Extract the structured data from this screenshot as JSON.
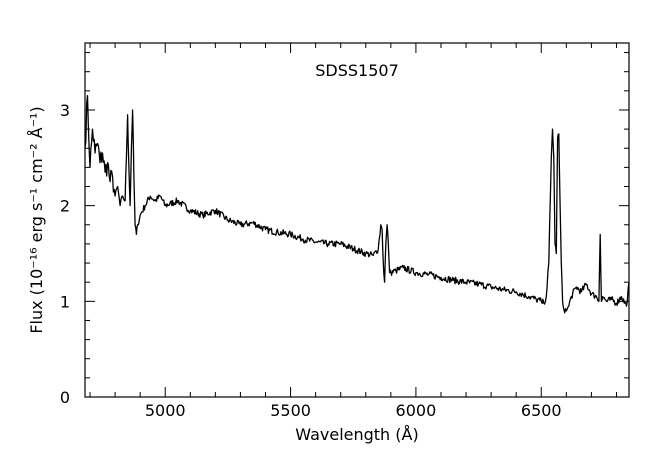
{
  "chart_data": {
    "type": "line",
    "title": "SDSS1507",
    "xlabel": "Wavelength (Å)",
    "ylabel": "Flux (10⁻¹⁶ erg s⁻¹ cm⁻² Å⁻¹)",
    "xlim": [
      4680,
      6850
    ],
    "ylim": [
      0,
      3.7
    ],
    "x_ticks": [
      "5000",
      "5500",
      "6000",
      "6500"
    ],
    "y_ticks": [
      "0",
      "1",
      "2",
      "3"
    ],
    "grid": false,
    "series": [
      {
        "x": [
          4680,
          4690,
          4700,
          4710,
          4720,
          4730,
          4740,
          4750,
          4760,
          4770,
          4780,
          4790,
          4800,
          4810,
          4820,
          4830,
          4840,
          4845,
          4850,
          4855,
          4860,
          4865,
          4870,
          4875,
          4880,
          4885,
          4890,
          4900,
          4920,
          4940,
          4960,
          4980,
          5000,
          5050,
          5100,
          5150,
          5200,
          5250,
          5300,
          5350,
          5400,
          5450,
          5500,
          5550,
          5600,
          5650,
          5700,
          5750,
          5800,
          5830,
          5850,
          5860,
          5865,
          5870,
          5875,
          5880,
          5885,
          5890,
          5895,
          5900,
          5920,
          5950,
          6000,
          6050,
          6100,
          6150,
          6200,
          6250,
          6300,
          6350,
          6400,
          6450,
          6480,
          6500,
          6510,
          6520,
          6530,
          6540,
          6545,
          6550,
          6555,
          6560,
          6565,
          6570,
          6575,
          6580,
          6585,
          6590,
          6600,
          6610,
          6620,
          6640,
          6660,
          6680,
          6700,
          6720,
          6730,
          6735,
          6740,
          6745,
          6760,
          6780,
          6800,
          6820,
          6840,
          6850
        ],
        "y": [
          2.6,
          3.15,
          2.4,
          2.8,
          2.55,
          2.65,
          2.45,
          2.55,
          2.35,
          2.45,
          2.25,
          2.3,
          2.1,
          2.2,
          2.0,
          2.1,
          2.05,
          2.5,
          2.95,
          2.4,
          2.0,
          2.6,
          3.0,
          2.3,
          1.8,
          1.7,
          1.8,
          1.9,
          2.0,
          2.1,
          2.05,
          2.1,
          2.0,
          2.05,
          1.95,
          1.9,
          1.95,
          1.85,
          1.8,
          1.82,
          1.75,
          1.72,
          1.7,
          1.65,
          1.62,
          1.6,
          1.6,
          1.55,
          1.5,
          1.48,
          1.55,
          1.8,
          1.75,
          1.4,
          1.2,
          1.6,
          1.8,
          1.6,
          1.3,
          1.3,
          1.32,
          1.35,
          1.3,
          1.28,
          1.25,
          1.22,
          1.2,
          1.18,
          1.15,
          1.12,
          1.1,
          1.05,
          1.02,
          1.0,
          0.98,
          1.05,
          1.4,
          2.5,
          2.8,
          2.5,
          1.6,
          1.5,
          2.7,
          2.75,
          2.0,
          1.4,
          1.0,
          0.92,
          0.9,
          0.95,
          1.05,
          1.15,
          1.1,
          1.18,
          1.08,
          1.05,
          1.0,
          1.7,
          1.0,
          1.05,
          1.0,
          1.02,
          0.98,
          1.05,
          0.95,
          1.2
        ]
      }
    ]
  }
}
